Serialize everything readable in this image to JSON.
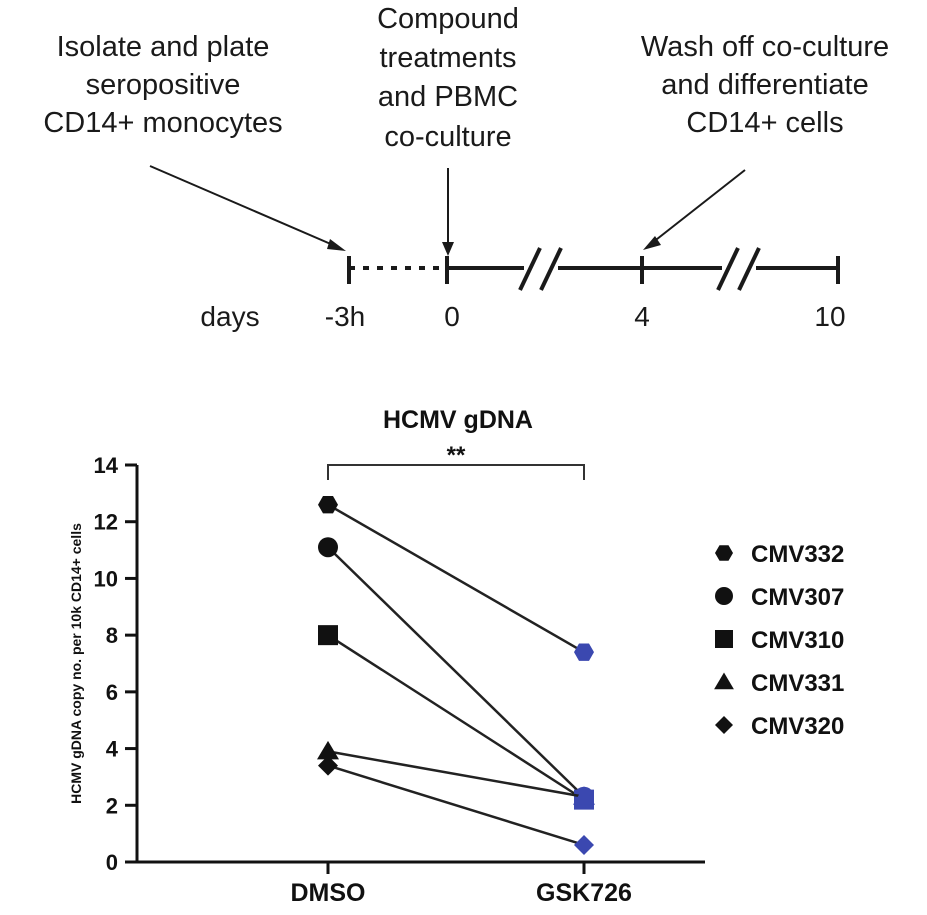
{
  "timeline": {
    "steps": [
      {
        "lines": [
          "Isolate and plate",
          "seropositive",
          "CD14+ monocytes"
        ]
      },
      {
        "lines": [
          "Compound",
          "treatments",
          "and PBMC",
          "co-culture"
        ]
      },
      {
        "lines": [
          "Wash off co-culture",
          "and differentiate",
          "CD14+ cells"
        ]
      }
    ],
    "unit_label": "days",
    "ticks": [
      "-3h",
      "0",
      "4",
      "10"
    ]
  },
  "chart_data": {
    "type": "scatter",
    "title": "HCMV gDNA",
    "ylabel": "HCMV gDNA copy no. per 10k CD14+ cells",
    "xlabel": "",
    "categories": [
      "DMSO",
      "GSK726"
    ],
    "ylim": [
      0,
      14
    ],
    "yticks": [
      0,
      2,
      4,
      6,
      8,
      10,
      12,
      14
    ],
    "significance": "**",
    "legend_position": "right",
    "series": [
      {
        "name": "CMV332",
        "marker": "hexagon",
        "values": [
          12.6,
          7.4
        ]
      },
      {
        "name": "CMV307",
        "marker": "circle",
        "values": [
          11.1,
          2.3
        ]
      },
      {
        "name": "CMV310",
        "marker": "square",
        "values": [
          8.0,
          2.2
        ]
      },
      {
        "name": "CMV331",
        "marker": "triangle",
        "values": [
          3.9,
          2.3
        ]
      },
      {
        "name": "CMV320",
        "marker": "diamond",
        "values": [
          3.4,
          0.6
        ]
      }
    ],
    "colors": {
      "control_marker": "#111111",
      "treated_marker": "#3b48b0",
      "line": "#222222"
    }
  }
}
